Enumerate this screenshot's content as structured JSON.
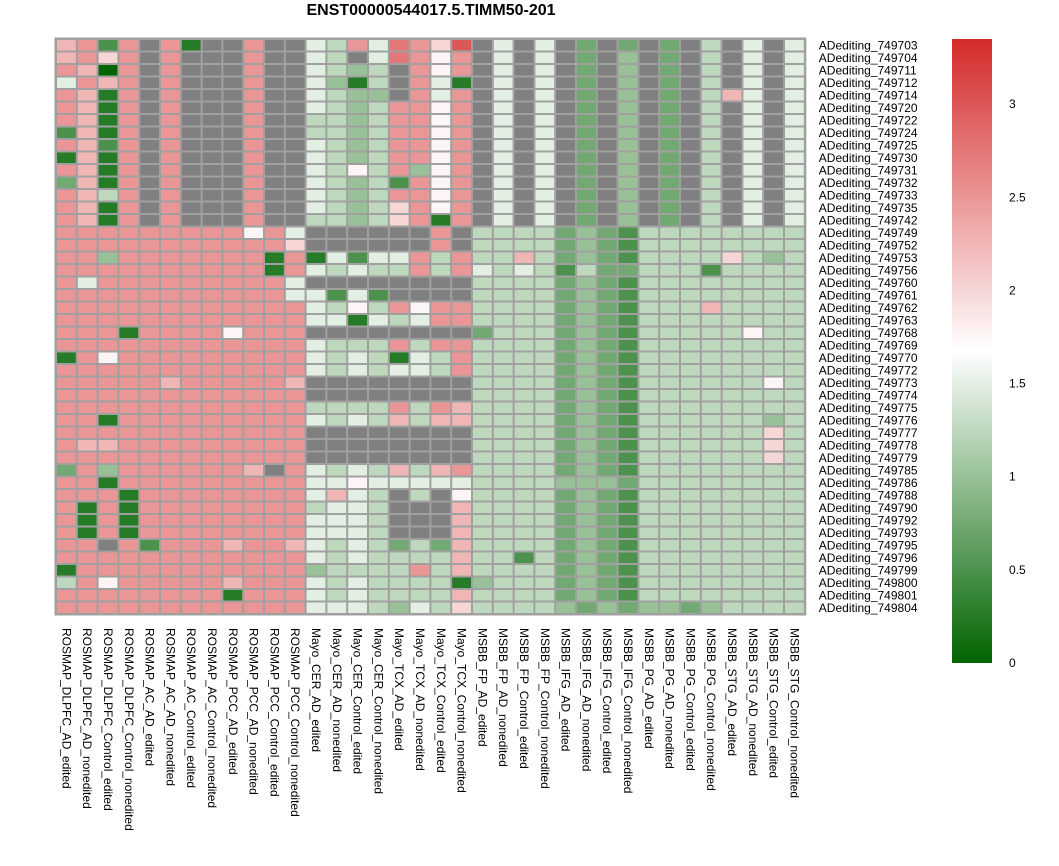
{
  "chart_data": {
    "type": "heatmap",
    "title": "ENST00000544017.5.TIMM50-201",
    "rows": [
      "ADediting_749703",
      "ADediting_749704",
      "ADediting_749711",
      "ADediting_749712",
      "ADediting_749714",
      "ADediting_749720",
      "ADediting_749722",
      "ADediting_749724",
      "ADediting_749725",
      "ADediting_749730",
      "ADediting_749731",
      "ADediting_749732",
      "ADediting_749733",
      "ADediting_749735",
      "ADediting_749742",
      "ADediting_749749",
      "ADediting_749752",
      "ADediting_749753",
      "ADediting_749756",
      "ADediting_749760",
      "ADediting_749761",
      "ADediting_749762",
      "ADediting_749763",
      "ADediting_749768",
      "ADediting_749769",
      "ADediting_749770",
      "ADediting_749772",
      "ADediting_749773",
      "ADediting_749774",
      "ADediting_749775",
      "ADediting_749776",
      "ADediting_749777",
      "ADediting_749778",
      "ADediting_749779",
      "ADediting_749785",
      "ADediting_749786",
      "ADediting_749788",
      "ADediting_749790",
      "ADediting_749792",
      "ADediting_749793",
      "ADediting_749795",
      "ADediting_749796",
      "ADediting_749799",
      "ADediting_749800",
      "ADediting_749801",
      "ADediting_749804"
    ],
    "columns": [
      "ROSMAP_DLPFC_AD_edited",
      "ROSMAP_DLPFC_AD_nonedited",
      "ROSMAP_DLPFC_Control_edited",
      "ROSMAP_DLPFC_Control_nonedited",
      "ROSMAP_AC_AD_edited",
      "ROSMAP_AC_AD_nonedited",
      "ROSMAP_AC_Control_edited",
      "ROSMAP_AC_Control_nonedited",
      "ROSMAP_PCC_AD_edited",
      "ROSMAP_PCC_AD_nonedited",
      "ROSMAP_PCC_Control_edited",
      "ROSMAP_PCC_Control_nonedited",
      "Mayo_CER_AD_edited",
      "Mayo_CER_AD_nonedited",
      "Mayo_CER_Control_edited",
      "Mayo_CER_Control_nonedited",
      "Mayo_TCX_AD_edited",
      "Mayo_TCX_AD_nonedited",
      "Mayo_TCX_Control_edited",
      "Mayo_TCX_Control_nonedited",
      "MSBB_FP_AD_edited",
      "MSBB_FP_AD_nonedited",
      "MSBB_FP_Control_edited",
      "MSBB_FP_Control_nonedited",
      "MSBB_IFG_AD_edited",
      "MSBB_IFG_AD_nonedited",
      "MSBB_IFG_Control_edited",
      "MSBB_IFG_Control_nonedited",
      "MSBB_PG_AD_edited",
      "MSBB_PG_AD_nonedited",
      "MSBB_PG_Control_edited",
      "MSBB_PG_Control_nonedited",
      "MSBB_STG_AD_edited",
      "MSBB_STG_AD_nonedited",
      "MSBB_STG_Control_edited",
      "MSBB_STG_Control_nonedited"
    ],
    "matrix_rows": [
      "9 a 2 a N a 1 N N a N N 6 5 a 6 b a 8 c N 6 N 6 N 3 N 3 N 3 N 5 N 6 N 6",
      "9 a 8 a N a N N N a N N 6 5 N 6 b a 7 a N 6 N 6 N 3 N 4 N 3 N 5 N 6 N 6",
      "a 9 0 a N a N N N a N N 6 5 4 5 N a 7 a N 6 N 6 N 3 N 4 N 3 N 5 N 6 N 6",
      "6 a 9 a N a N N N a N N 6 4 1 5 N a 6 1 N 6 N 6 N 3 N 4 N 3 N 5 N 6 N 6",
      "a 9 1 a N a N N N a N N 6 5 4 4 N a 6 a N 6 N 6 N 3 N 4 N 3 N 5 9 6 N 6",
      "a 9 1 a N a N N N a N N 6 5 4 5 a a 7 a N 6 N 6 N 3 N 4 N 3 N 5 N 6 N 6",
      "a 9 1 a N a N N N a N N 5 5 4 5 a a 7 a N 6 N 6 N 3 N 4 N 3 N 5 N 6 N 6",
      "2 9 1 a N a N N N a N N 5 5 4 5 a a 7 a N 6 N 6 N 3 N 4 N 3 N 5 N 6 N 6",
      "a 9 2 a N a N N N a N N 6 5 4 5 a a 7 a N 6 N 6 N 3 N 4 N 3 N 5 N 6 N 6",
      "1 9 1 a N a N N N a N N 6 5 4 5 a a 7 a N 6 N 6 N 3 N 4 N 3 N 5 N 6 N 6",
      "a 9 1 a N a N N N a N N 6 5 7 5 a 4 7 a N 6 N 6 N 3 N 4 N 3 N 5 N 6 N 6",
      "3 9 1 a N a N N N a N N 6 5 4 5 2 a 7 a N 6 N 6 N 3 N 4 N 3 N 5 N 6 N 6",
      "a 9 5 a N a N N N a N N 6 5 4 5 a a 7 a N 6 N 6 N 3 N 4 N 3 N 5 N 6 N 6",
      "a 9 1 a N a N N N a N N 6 5 4 5 8 a 7 a N 6 N 6 N 3 N 4 N 3 N 5 N 6 N 6",
      "a 9 1 a N a N N N a N N 5 5 4 5 8 a 1 a N 6 N 6 N 3 N 4 N 3 N 5 N 6 N 6",
      "a a a a a a a a a 7 a 6 N N N N N N a N 5 5 5 5 3 4 3 2 5 5 5 5 5 5 5 5",
      "a a a a a a a a a a a 8 N N N N N N a N 5 5 5 5 3 4 3 2 5 5 5 5 5 5 5 5",
      "a a 4 a a a a a a a 1 a 1 6 2 6 6 a 5 a 5 5 9 5 3 4 3 2 5 5 5 5 8 5 4 5",
      "a a a a a a a a a a 1 a 6 5 6 5 5 a 5 a 6 5 6 5 2 5 3 3 5 5 5 2 5 5 5 5",
      "a 6 a a a a a a a a a 6 N N N N N N N N 5 5 5 5 3 4 3 2 5 5 5 5 5 5 5 5",
      "a a a a a a a a a a a 6 6 2 6 2 N N N N 5 5 5 5 3 4 3 2 5 5 5 5 5 5 5 5",
      "a a a a a a a a a a a a 6 5 7 5 a 7 a a 5 5 5 5 3 4 3 2 5 5 5 9 5 5 5 5",
      "a a a a a a a a a a a a 6 6 1 6 5 6 a a 5 5 5 5 3 4 3 2 5 5 5 5 5 5 5 5",
      "a a a 1 a a a a 7 a a a N N N N N N N N 3 5 5 5 3 4 3 2 5 5 5 5 5 7 5 5",
      "a a a a a a a a a a a a 6 5 5 5 a 5 a a 5 5 5 5 3 4 3 2 5 5 5 5 5 5 5 5",
      "1 a 7 a a a a a a a a a 6 5 6 5 1 6 5 a 5 5 5 5 3 4 3 2 5 5 5 5 5 5 5 5",
      "a a a a a a a a a a a a 6 5 6 5 6 6 5 a 5 5 5 5 3 4 3 2 5 5 5 5 5 5 5 5",
      "a a a a a 9 a a a a a 9 N N N N N N N N 5 5 5 5 3 4 3 2 5 5 5 5 5 5 7 5",
      "a a a a a a a a a a a a N N N N N N N N 5 5 5 5 3 4 3 2 5 5 5 5 5 5 5 5",
      "a a a a a a a a a a a a 5 5 5 5 a 5 a 9 5 5 5 5 3 4 3 2 5 5 5 5 5 5 5 5",
      "a a 1 a a a a a a a a a 6 5 6 5 9 5 9 9 5 5 5 5 3 4 3 2 5 5 5 5 5 5 4 5",
      "a a a a a a a a a a a a N N N N N N N N 5 5 5 5 3 4 3 2 5 5 5 5 5 5 8 5",
      "a 9 9 a a a a a a a a a N N N N N N N N 5 5 5 5 3 4 3 2 5 5 5 5 5 5 8 5",
      "a a a a a a a a a a a a N N N N N N N N 5 5 5 5 3 4 3 2 5 5 5 5 5 5 8 5",
      "3 a 4 a a a a a a 9 N a 6 5 6 5 9 5 9 a 5 5 5 5 3 4 3 2 5 5 5 5 5 5 5 5",
      "a a 1 a a a a a a a a a 6 6 7 6 6 6 6 6 5 5 5 5 4 4 4 3 5 5 5 5 5 5 5 5",
      "a a a 1 a a a a a a a a 6 9 6 5 N 5 N 7 5 5 5 5 3 4 3 2 5 5 5 5 5 5 5 5",
      "a 1 a 1 a a a a a a a a 5 6 6 5 N N N 9 5 5 5 5 3 4 3 2 5 5 5 5 5 5 5 5",
      "a 1 a 1 a a a a a a a a 6 6 6 5 N N N 9 5 5 5 5 3 4 3 2 5 5 5 5 5 5 5 5",
      "a 1 a 1 a a a a a a a a 6 6 6 5 N N N 9 5 5 5 5 3 4 3 2 5 5 5 5 5 5 5 5",
      "a a N a 2 a a a 9 a a 9 6 5 6 5 3 5 3 9 5 5 5 5 3 4 3 2 5 5 5 5 5 5 5 5",
      "a a a a a a a a a a a a 6 5 6 5 5 5 5 9 5 5 2 5 3 4 3 2 5 5 5 5 5 5 5 5",
      "1 a a a a a a a a a a a 4 5 5 5 5 a 5 9 5 5 5 5 3 4 3 2 5 5 5 5 5 5 5 5",
      "5 a 7 a a a a a 9 a a a 6 5 6 5 5 5 5 1 4 5 5 5 3 4 3 2 5 5 5 5 5 5 5 5",
      "a a a a a a a a 1 a a a 6 5 6 5 5 5 5 9 5 5 5 5 3 4 3 2 5 5 5 5 5 5 5 5",
      "a a a a a a a a a a a a 6 6 6 5 4 6 5 8 5 5 5 5 4 3 4 3 4 4 3 4 5 5 5 5"
    ],
    "matrix_encoding": "Each row string lists one cell per column: hex digit level 0-c (value = level * 0.25, scale 0 to 3), N = missing (NA, drawn grey).",
    "colorscale": {
      "low": "#006400",
      "mid": "#ffffff",
      "high": "#d42a2a",
      "missing": "#808080",
      "border": "#a0a0a0"
    },
    "legend": {
      "min": 0,
      "max": 3.35,
      "ticks": [
        "0",
        "0.5",
        "1",
        "1.5",
        "2",
        "2.5",
        "3"
      ]
    }
  }
}
